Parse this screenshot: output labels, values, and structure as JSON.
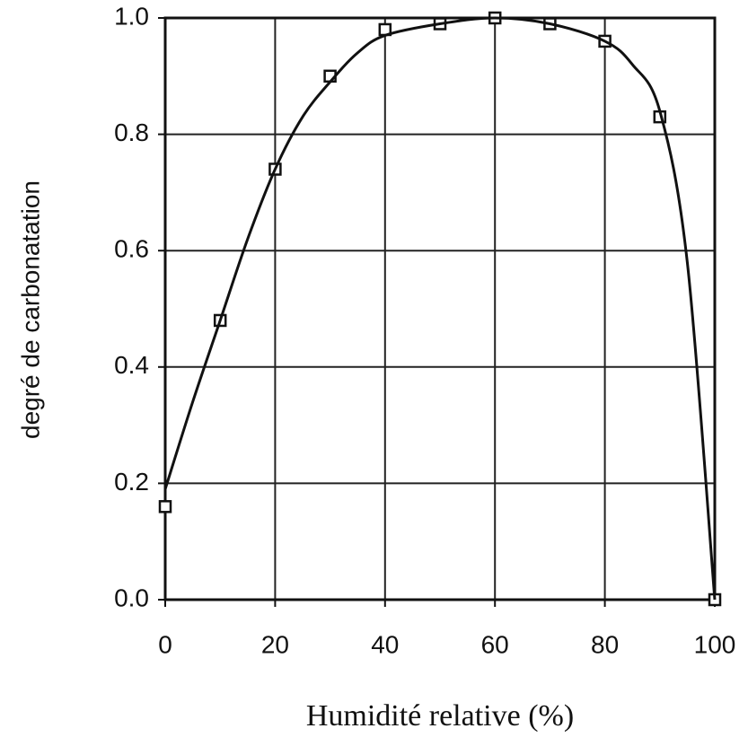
{
  "chart_data": {
    "type": "scatter",
    "x_label": "Humidité relative (%)",
    "y_label": "degré de carbonatation",
    "xlim": [
      0,
      100
    ],
    "xticks": [
      0,
      20,
      40,
      60,
      80,
      100
    ],
    "ylim": [
      0,
      1
    ],
    "yticks": [
      {
        "value": 0,
        "label": "0.0"
      },
      0.2,
      0.4,
      0.6,
      0.8,
      {
        "value": 1,
        "label": "1.0"
      }
    ],
    "grid": true,
    "series": [
      {
        "color": "#111111",
        "marker": "square",
        "x": [
          0,
          10,
          20,
          30,
          40,
          50,
          60,
          70,
          80,
          90,
          100
        ],
        "values": [
          0.16,
          0.48,
          0.74,
          0.9,
          0.98,
          0.99,
          1.0,
          0.99,
          0.96,
          0.83,
          0.0
        ]
      },
      {
        "color": "#111111",
        "marker": "line",
        "x": [
          0,
          5,
          10,
          15,
          20,
          25,
          30,
          35,
          40,
          50,
          60,
          70,
          80,
          85,
          90,
          95,
          100
        ],
        "values": [
          0.19,
          0.34,
          0.48,
          0.62,
          0.74,
          0.83,
          0.89,
          0.94,
          0.97,
          0.99,
          1.0,
          0.99,
          0.96,
          0.92,
          0.84,
          0.58,
          0.0
        ]
      }
    ]
  }
}
